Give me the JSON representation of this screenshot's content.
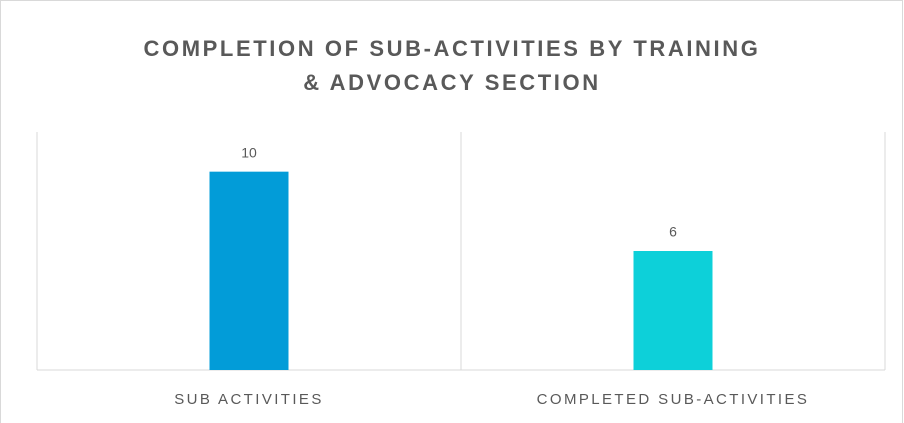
{
  "chart_data": {
    "type": "bar",
    "title": "COMPLETION OF SUB-ACTIVITIES BY TRAINING & ADVOCACY SECTION",
    "categories": [
      "SUB ACTIVITIES",
      "COMPLETED SUB-ACTIVITIES"
    ],
    "values": [
      10,
      6
    ],
    "colors": [
      "#029cd8",
      "#0dd0d9"
    ],
    "ylim": [
      0,
      12
    ],
    "grid": false
  }
}
